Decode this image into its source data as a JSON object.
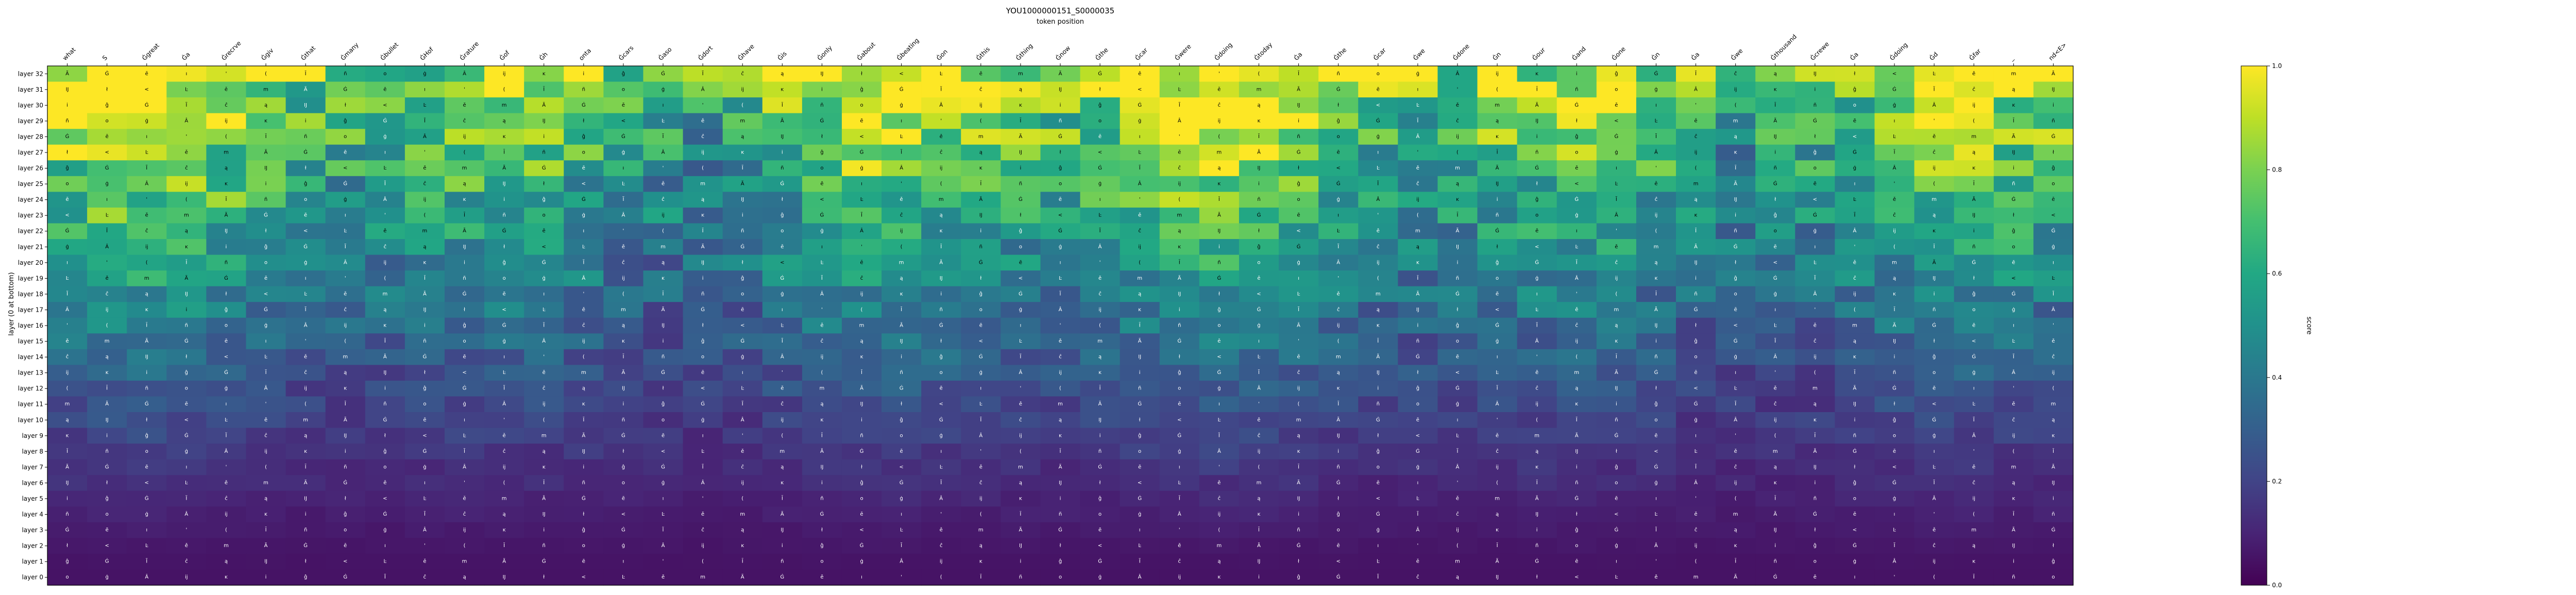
{
  "chart_data": {
    "type": "heatmap",
    "title": "YOU1000000151_S0000035",
    "xlabel": "token position",
    "ylabel": "layer (0 at bottom)",
    "colorbar": {
      "label": "score",
      "range": [
        0.0,
        1.0
      ],
      "ticks": [
        "0.0",
        "0.2",
        "0.4",
        "0.6",
        "0.8",
        "1.0"
      ],
      "colormap": "viridis"
    },
    "x_tick_labels": [
      "what",
      "S",
      "Ġgreat",
      "Ġa",
      "Ġrecrve",
      "Ġgiv",
      "Ġthat",
      "Ġmany",
      "Ġbullet",
      "ĠHof",
      "Ġrature",
      "Ġof",
      "Ġh",
      "onta",
      "Ġcars",
      "Ġaso",
      "Ġdort",
      "Ġhave",
      "Ġis",
      "Ġonly",
      "Ġabout",
      "Ġbeating",
      "Ġon",
      "Ġthis",
      "Ġthing",
      "Ġnow",
      "Ġthe",
      "Ġcar",
      "Ġwere",
      "Ġdoing",
      "Ġtoday",
      "Ġa",
      "Ġthe",
      "Ġcar",
      "Ġwe",
      "Ġdone",
      "Ġn",
      "Ġour",
      "Ġand",
      "Ġone",
      "Ġn",
      "Ġa",
      "Ġwe",
      "Ġthousand",
      "Ġcrewe",
      "Ġa",
      "Ġdoing",
      "Ġd",
      "Ġfar",
      "_",
      "nd<E>"
    ],
    "y_tick_labels": [
      "layer 32",
      "layer 31",
      "layer 30",
      "layer 29",
      "layer 28",
      "layer 27",
      "layer 26",
      "layer 25",
      "layer 24",
      "layer 23",
      "layer 22",
      "layer 21",
      "layer 20",
      "layer 19",
      "layer 18",
      "layer 17",
      "layer 16",
      "layer 15",
      "layer 14",
      "layer 13",
      "layer 12",
      "layer 11",
      "layer 10",
      "layer 9",
      "layer 8",
      "layer 7",
      "layer 6",
      "layer 5",
      "layer 4",
      "layer 3",
      "layer 2",
      "layer 1",
      "layer 0"
    ],
    "cell_glyphs": [
      "Ã",
      "ĉ",
      "ģ",
      "Ġ",
      "ą",
      "Â",
      "ē",
      "Ĳ",
      "ĳ",
      "ı",
      "ł",
      "ĸ",
      "'",
      "<",
      "i",
      "(",
      "Ŀ",
      "ĝ",
      "Ī",
      "ě",
      "Ġ",
      "ñ",
      "m",
      "Ĩ",
      "o"
    ]
  }
}
